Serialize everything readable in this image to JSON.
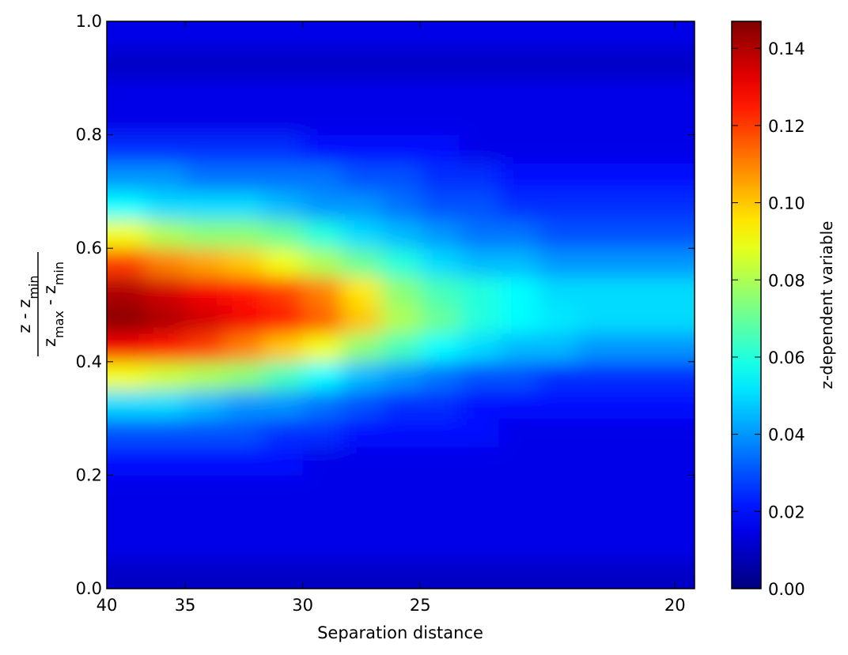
{
  "chart_data": {
    "type": "heatmap",
    "xlabel": "Separation distance",
    "ylabel": {
      "numerator": [
        "z - z",
        "min"
      ],
      "denominator": [
        "z",
        "max",
        " - z",
        "min"
      ]
    },
    "colorbar_label": "z-dependent variable",
    "colormap": "jet",
    "x": [
      1,
      3,
      5,
      7,
      9,
      11,
      13,
      15,
      17,
      19,
      21,
      23,
      25,
      27,
      29
    ],
    "y": [
      0.025,
      0.075,
      0.125,
      0.175,
      0.225,
      0.275,
      0.325,
      0.375,
      0.425,
      0.475,
      0.525,
      0.575,
      0.625,
      0.675,
      0.725,
      0.775,
      0.825,
      0.875,
      0.925,
      0.975
    ],
    "z": [
      [
        0.01,
        0.01,
        0.01,
        0.01,
        0.01,
        0.01,
        0.01,
        0.01,
        0.01,
        0.01,
        0.01,
        0.01,
        0.01,
        0.01,
        0.01
      ],
      [
        0.015,
        0.015,
        0.015,
        0.015,
        0.015,
        0.015,
        0.015,
        0.015,
        0.015,
        0.015,
        0.015,
        0.015,
        0.015,
        0.015,
        0.015
      ],
      [
        0.015,
        0.015,
        0.015,
        0.015,
        0.015,
        0.015,
        0.015,
        0.015,
        0.015,
        0.015,
        0.015,
        0.015,
        0.015,
        0.015,
        0.015
      ],
      [
        0.015,
        0.015,
        0.015,
        0.015,
        0.015,
        0.015,
        0.015,
        0.015,
        0.015,
        0.015,
        0.015,
        0.015,
        0.015,
        0.015,
        0.015
      ],
      [
        0.02,
        0.02,
        0.02,
        0.02,
        0.02,
        0.015,
        0.015,
        0.015,
        0.015,
        0.015,
        0.015,
        0.015,
        0.015,
        0.015,
        0.015
      ],
      [
        0.03,
        0.03,
        0.03,
        0.03,
        0.025,
        0.025,
        0.02,
        0.02,
        0.02,
        0.02,
        0.015,
        0.015,
        0.015,
        0.015,
        0.015
      ],
      [
        0.05,
        0.05,
        0.045,
        0.04,
        0.04,
        0.035,
        0.03,
        0.025,
        0.025,
        0.02,
        0.02,
        0.02,
        0.02,
        0.02,
        0.02
      ],
      [
        0.09,
        0.085,
        0.08,
        0.075,
        0.065,
        0.055,
        0.045,
        0.04,
        0.035,
        0.03,
        0.03,
        0.025,
        0.025,
        0.025,
        0.025
      ],
      [
        0.13,
        0.125,
        0.12,
        0.11,
        0.1,
        0.09,
        0.075,
        0.065,
        0.055,
        0.05,
        0.045,
        0.045,
        0.04,
        0.04,
        0.04
      ],
      [
        0.145,
        0.14,
        0.135,
        0.13,
        0.125,
        0.115,
        0.1,
        0.08,
        0.07,
        0.06,
        0.055,
        0.052,
        0.05,
        0.05,
        0.05
      ],
      [
        0.14,
        0.135,
        0.13,
        0.125,
        0.12,
        0.11,
        0.095,
        0.075,
        0.065,
        0.06,
        0.055,
        0.05,
        0.05,
        0.05,
        0.05
      ],
      [
        0.12,
        0.11,
        0.105,
        0.1,
        0.09,
        0.08,
        0.07,
        0.06,
        0.05,
        0.045,
        0.045,
        0.04,
        0.04,
        0.04,
        0.04
      ],
      [
        0.09,
        0.08,
        0.075,
        0.075,
        0.07,
        0.06,
        0.05,
        0.045,
        0.04,
        0.035,
        0.035,
        0.03,
        0.03,
        0.03,
        0.03
      ],
      [
        0.055,
        0.05,
        0.05,
        0.05,
        0.045,
        0.04,
        0.04,
        0.035,
        0.03,
        0.03,
        0.025,
        0.025,
        0.025,
        0.025,
        0.025
      ],
      [
        0.04,
        0.04,
        0.035,
        0.035,
        0.035,
        0.035,
        0.03,
        0.03,
        0.025,
        0.025,
        0.02,
        0.02,
        0.02,
        0.02,
        0.02
      ],
      [
        0.025,
        0.025,
        0.025,
        0.025,
        0.025,
        0.02,
        0.02,
        0.02,
        0.02,
        0.015,
        0.015,
        0.015,
        0.015,
        0.015,
        0.015
      ],
      [
        0.015,
        0.015,
        0.015,
        0.015,
        0.015,
        0.015,
        0.015,
        0.015,
        0.015,
        0.015,
        0.015,
        0.015,
        0.015,
        0.015,
        0.015
      ],
      [
        0.015,
        0.015,
        0.015,
        0.015,
        0.015,
        0.015,
        0.015,
        0.015,
        0.015,
        0.015,
        0.015,
        0.015,
        0.015,
        0.015,
        0.015
      ],
      [
        0.01,
        0.01,
        0.01,
        0.01,
        0.01,
        0.01,
        0.01,
        0.01,
        0.01,
        0.01,
        0.01,
        0.01,
        0.01,
        0.01,
        0.01
      ],
      [
        0.015,
        0.015,
        0.015,
        0.015,
        0.015,
        0.015,
        0.015,
        0.015,
        0.015,
        0.015,
        0.015,
        0.015,
        0.015,
        0.015,
        0.015
      ]
    ],
    "xlim": [
      0,
      30
    ],
    "xticks": [
      {
        "value": 0,
        "label": "40"
      },
      {
        "value": 4,
        "label": "35"
      },
      {
        "value": 10,
        "label": "30"
      },
      {
        "value": 16,
        "label": "25"
      },
      {
        "value": 29,
        "label": "20"
      }
    ],
    "ylim": [
      0,
      1
    ],
    "yticks": [
      {
        "value": 0,
        "label": "0.0"
      },
      {
        "value": 0.2,
        "label": "0.2"
      },
      {
        "value": 0.4,
        "label": "0.4"
      },
      {
        "value": 0.6,
        "label": "0.6"
      },
      {
        "value": 0.8,
        "label": "0.8"
      },
      {
        "value": 1,
        "label": "1.0"
      }
    ],
    "clim": [
      0,
      0.147
    ],
    "cticks": [
      {
        "value": 0,
        "label": "0.00"
      },
      {
        "value": 0.02,
        "label": "0.02"
      },
      {
        "value": 0.04,
        "label": "0.04"
      },
      {
        "value": 0.06,
        "label": "0.06"
      },
      {
        "value": 0.08,
        "label": "0.08"
      },
      {
        "value": 0.1,
        "label": "0.10"
      },
      {
        "value": 0.12,
        "label": "0.12"
      },
      {
        "value": 0.14,
        "label": "0.14"
      }
    ]
  }
}
